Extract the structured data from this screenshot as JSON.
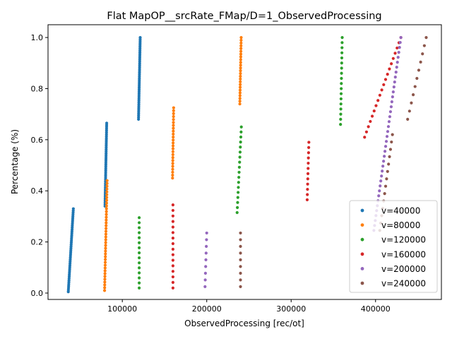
{
  "chart_data": {
    "type": "scatter",
    "title": "Flat MapOP__srcRate_FMap/D=1_ObservedProcessing",
    "xlabel": "ObservedProcessing [rec/ot]",
    "ylabel": "Percentage (%)",
    "xlim": [
      12000,
      478000
    ],
    "ylim": [
      -0.025,
      1.05
    ],
    "xticks": [
      100000,
      200000,
      300000,
      400000
    ],
    "xtick_labels": [
      "100000",
      "200000",
      "300000",
      "400000"
    ],
    "yticks": [
      0.0,
      0.2,
      0.4,
      0.6,
      0.8,
      1.0
    ],
    "ytick_labels": [
      "0.0",
      "0.2",
      "0.4",
      "0.6",
      "0.8",
      "1.0"
    ],
    "grid": false,
    "legend_position": "lower-right",
    "series": [
      {
        "name": "v=40000",
        "color": "#1f77b4",
        "groups": [
          {
            "x_start": 36000,
            "x_end": 42000,
            "y_start": 0.005,
            "y_end": 0.33,
            "n": 45
          },
          {
            "x_start": 79500,
            "x_end": 81500,
            "y_start": 0.34,
            "y_end": 0.665,
            "n": 45
          },
          {
            "x_start": 119200,
            "x_end": 121200,
            "y_start": 0.68,
            "y_end": 1.0,
            "n": 45
          }
        ]
      },
      {
        "name": "v=80000",
        "color": "#ff7f0e",
        "groups": [
          {
            "x_start": 79000,
            "x_end": 82000,
            "y_start": 0.01,
            "y_end": 0.44,
            "n": 40
          },
          {
            "x_start": 159500,
            "x_end": 160800,
            "y_start": 0.45,
            "y_end": 0.725,
            "n": 25
          },
          {
            "x_start": 239200,
            "x_end": 240800,
            "y_start": 0.74,
            "y_end": 1.0,
            "n": 25
          }
        ]
      },
      {
        "name": "v=120000",
        "color": "#2ca02c",
        "groups": [
          {
            "x_start": 120000,
            "x_end": 120000,
            "y_start": 0.02,
            "y_end": 0.295,
            "n": 15
          },
          {
            "x_start": 236000,
            "x_end": 241000,
            "y_start": 0.315,
            "y_end": 0.65,
            "n": 18
          },
          {
            "x_start": 358500,
            "x_end": 360500,
            "y_start": 0.66,
            "y_end": 1.0,
            "n": 18
          }
        ]
      },
      {
        "name": "v=160000",
        "color": "#d62728",
        "groups": [
          {
            "x_start": 160000,
            "x_end": 160000,
            "y_start": 0.02,
            "y_end": 0.345,
            "n": 16
          },
          {
            "x_start": 319000,
            "x_end": 321000,
            "y_start": 0.365,
            "y_end": 0.59,
            "n": 12
          },
          {
            "x_start": 387000,
            "x_end": 430000,
            "y_start": 0.61,
            "y_end": 1.0,
            "n": 20
          }
        ]
      },
      {
        "name": "v=200000",
        "color": "#9467bd",
        "groups": [
          {
            "x_start": 198000,
            "x_end": 200000,
            "y_start": 0.025,
            "y_end": 0.235,
            "n": 9
          },
          {
            "x_start": 398000,
            "x_end": 430000,
            "y_start": 0.245,
            "y_end": 1.0,
            "n": 40
          }
        ]
      },
      {
        "name": "v=240000",
        "color": "#8c564b",
        "groups": [
          {
            "x_start": 240000,
            "x_end": 240000,
            "y_start": 0.025,
            "y_end": 0.235,
            "n": 9
          },
          {
            "x_start": 405000,
            "x_end": 420000,
            "y_start": 0.245,
            "y_end": 0.62,
            "n": 14
          },
          {
            "x_start": 438000,
            "x_end": 460000,
            "y_start": 0.68,
            "y_end": 1.0,
            "n": 11
          }
        ]
      }
    ]
  }
}
